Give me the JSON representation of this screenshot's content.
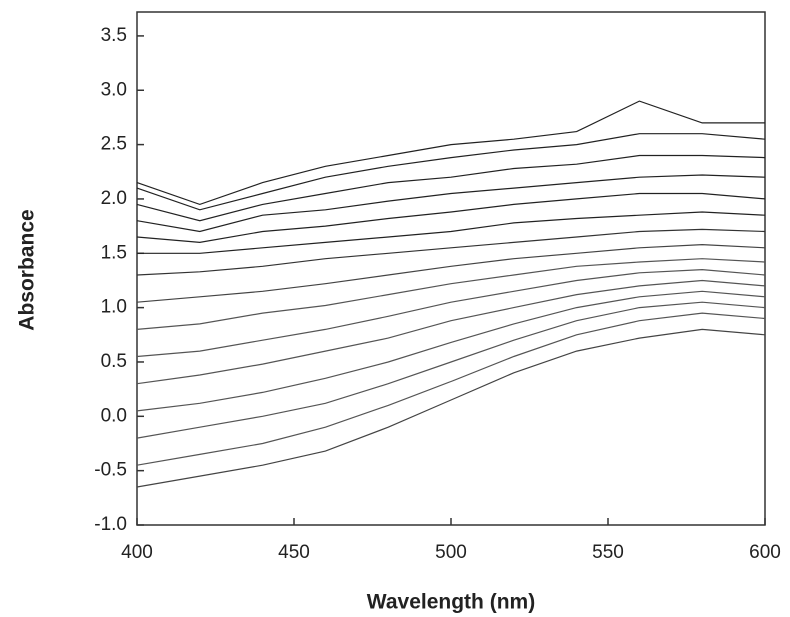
{
  "chart_data": {
    "type": "line",
    "x_label": "Wavelength (nm)",
    "y_label": "Absorbance",
    "x": [
      400,
      420,
      440,
      460,
      480,
      500,
      520,
      540,
      560,
      580,
      600
    ],
    "xlim": [
      400,
      600
    ],
    "xticks": [
      400,
      450,
      500,
      550,
      600
    ],
    "ylim": [
      -1.0,
      3.72
    ],
    "yticks": [
      {
        "value": -1.0,
        "label": "-1.0"
      },
      -0.5,
      {
        "value": 0.0,
        "label": "0.0"
      },
      0.5,
      {
        "value": 1.0,
        "label": "1.0"
      },
      1.5,
      {
        "value": 2.0,
        "label": "2.0"
      },
      2.5,
      {
        "value": 3.0,
        "label": "3.0"
      },
      3.5
    ],
    "series": [
      {
        "color": "#444",
        "values": [
          -0.65,
          -0.55,
          -0.45,
          -0.32,
          -0.1,
          0.15,
          0.4,
          0.6,
          0.72,
          0.8,
          0.75
        ]
      },
      {
        "color": "#555",
        "values": [
          -0.45,
          -0.35,
          -0.25,
          -0.1,
          0.1,
          0.32,
          0.55,
          0.75,
          0.88,
          0.95,
          0.9
        ]
      },
      {
        "color": "#555",
        "values": [
          -0.2,
          -0.1,
          0.0,
          0.12,
          0.3,
          0.5,
          0.7,
          0.88,
          1.0,
          1.05,
          1.0
        ]
      },
      {
        "color": "#555",
        "values": [
          0.05,
          0.12,
          0.22,
          0.35,
          0.5,
          0.68,
          0.85,
          1.0,
          1.1,
          1.15,
          1.1
        ]
      },
      {
        "color": "#555",
        "values": [
          0.3,
          0.38,
          0.48,
          0.6,
          0.72,
          0.88,
          1.0,
          1.12,
          1.2,
          1.25,
          1.2
        ]
      },
      {
        "color": "#555",
        "values": [
          0.55,
          0.6,
          0.7,
          0.8,
          0.92,
          1.05,
          1.15,
          1.25,
          1.32,
          1.35,
          1.3
        ]
      },
      {
        "color": "#555",
        "values": [
          0.8,
          0.85,
          0.95,
          1.02,
          1.12,
          1.22,
          1.3,
          1.38,
          1.42,
          1.45,
          1.42
        ]
      },
      {
        "color": "#444",
        "values": [
          1.05,
          1.1,
          1.15,
          1.22,
          1.3,
          1.38,
          1.45,
          1.5,
          1.55,
          1.58,
          1.55
        ]
      },
      {
        "color": "#333",
        "values": [
          1.3,
          1.33,
          1.38,
          1.45,
          1.5,
          1.55,
          1.6,
          1.65,
          1.7,
          1.72,
          1.7
        ]
      },
      {
        "color": "#222",
        "values": [
          1.5,
          1.5,
          1.55,
          1.6,
          1.65,
          1.7,
          1.78,
          1.82,
          1.85,
          1.88,
          1.85
        ]
      },
      {
        "color": "#222",
        "values": [
          1.65,
          1.6,
          1.7,
          1.75,
          1.82,
          1.88,
          1.95,
          2.0,
          2.05,
          2.05,
          2.0
        ]
      },
      {
        "color": "#222",
        "values": [
          1.8,
          1.7,
          1.85,
          1.9,
          1.98,
          2.05,
          2.1,
          2.15,
          2.2,
          2.22,
          2.2
        ]
      },
      {
        "color": "#222",
        "values": [
          1.95,
          1.8,
          1.95,
          2.05,
          2.15,
          2.2,
          2.28,
          2.32,
          2.4,
          2.4,
          2.38
        ]
      },
      {
        "color": "#222",
        "values": [
          2.1,
          1.9,
          2.05,
          2.2,
          2.3,
          2.38,
          2.45,
          2.5,
          2.6,
          2.6,
          2.55
        ]
      },
      {
        "color": "#222",
        "values": [
          2.15,
          1.95,
          2.15,
          2.3,
          2.4,
          2.5,
          2.55,
          2.62,
          2.9,
          2.7,
          2.7
        ]
      }
    ]
  }
}
